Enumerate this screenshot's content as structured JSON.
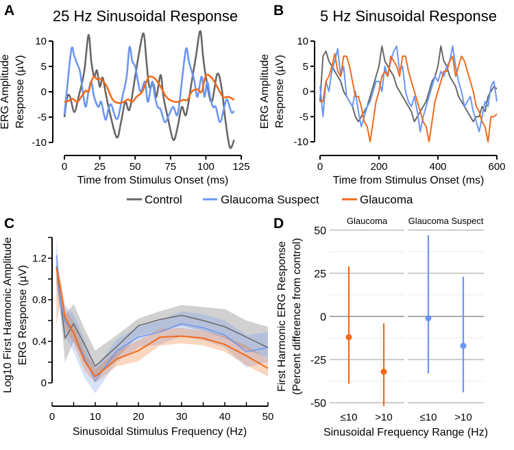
{
  "colors": {
    "control": "#666666",
    "suspect": "#6a96f2",
    "glaucoma": "#f26a1b"
  },
  "legend": [
    {
      "name": "Control",
      "color_key": "control"
    },
    {
      "name": "Glaucoma Suspect",
      "color_key": "suspect"
    },
    {
      "name": "Glaucoma",
      "color_key": "glaucoma"
    }
  ],
  "chart_data": [
    {
      "panel": "A",
      "type": "line",
      "title": "25 Hz Sinusoidal Response",
      "xlabel": "Time from Stimulus Onset (ms)",
      "ylabel": [
        "ERG Amplitude",
        "Response (µV)"
      ],
      "xlim": [
        0,
        125
      ],
      "ylim": [
        -10,
        10
      ],
      "xticks": [
        0,
        25,
        50,
        75,
        100,
        125
      ],
      "yticks": [
        -10,
        -5,
        0,
        5,
        10
      ],
      "smooth": true,
      "series": [
        {
          "name": "Control",
          "color_key": "control",
          "x": [
            0,
            2,
            4,
            7,
            10,
            14,
            17,
            19,
            21,
            23,
            25,
            27,
            29,
            32,
            37,
            40,
            43,
            46,
            50,
            53,
            56,
            58,
            60,
            63,
            65,
            68,
            70,
            73,
            77,
            80,
            83,
            86,
            90,
            93,
            96,
            98,
            100,
            104,
            108,
            111,
            114,
            117,
            120
          ],
          "y": [
            -5,
            -1,
            -1,
            -4,
            -1,
            4,
            11.2,
            6,
            3,
            4.2,
            1,
            2.8,
            0,
            -4,
            -9,
            -6,
            -2,
            -3.5,
            3,
            8,
            11.5,
            6,
            1,
            1.5,
            -1,
            3.3,
            -1,
            -5,
            -9.5,
            -7,
            -3,
            -4.5,
            2,
            7,
            12,
            7,
            3,
            -2,
            3.5,
            1,
            -6,
            -11,
            -9.5
          ]
        },
        {
          "name": "Glaucoma Suspect",
          "color_key": "suspect",
          "x": [
            0,
            2,
            5,
            7,
            9,
            11,
            13,
            15,
            17,
            19,
            21,
            24,
            26,
            29,
            31,
            33,
            36,
            38,
            41,
            44,
            46,
            48,
            50,
            52,
            54,
            57,
            59,
            62,
            64,
            66,
            68,
            71,
            74,
            77,
            80,
            83,
            86,
            88,
            90,
            92,
            94,
            97,
            99,
            101,
            103,
            105,
            107,
            110,
            113,
            115,
            118,
            120
          ],
          "y": [
            -4.5,
            1,
            8.5,
            7,
            5.5,
            4,
            0,
            -3,
            0,
            2,
            -1,
            -3,
            -2,
            -5.5,
            -3.5,
            -2.5,
            -5,
            -5,
            -1,
            3,
            8.8,
            6,
            5,
            2,
            0,
            2,
            -2,
            2,
            -1,
            -3,
            -3.5,
            -6,
            -4.5,
            -3,
            -4.5,
            2,
            8.5,
            6,
            4,
            2,
            -1,
            3,
            -1,
            2,
            -1,
            -3,
            -3,
            -6,
            -3,
            -1.5,
            -4,
            -3.8
          ]
        },
        {
          "name": "Glaucoma",
          "color_key": "glaucoma",
          "x": [
            0,
            3,
            6,
            9,
            12,
            15,
            17,
            19,
            21,
            23,
            26,
            30,
            34,
            38,
            42,
            45,
            48,
            51,
            55,
            58,
            60,
            64,
            68,
            72,
            76,
            80,
            84,
            87,
            90,
            94,
            97,
            100,
            104,
            108,
            112,
            116,
            120
          ],
          "y": [
            -2,
            -1.8,
            -1.4,
            -2,
            -1,
            0.2,
            0,
            2,
            3,
            2.5,
            2.5,
            1,
            -1.5,
            -2.2,
            -2,
            -1.5,
            -2,
            -1,
            0,
            2,
            3,
            2.6,
            1,
            -1,
            -1.8,
            -2,
            -1.6,
            -1.6,
            0,
            0.5,
            0,
            3.2,
            2.8,
            1,
            -1,
            -1,
            -1.6
          ]
        }
      ]
    },
    {
      "panel": "B",
      "type": "line",
      "title": "5 Hz Sinusoidal Response",
      "xlabel": "Time from Stimulus Onset (ms)",
      "ylabel": [
        "ERG Amplitude",
        "Response (µV)"
      ],
      "xlim": [
        0,
        600
      ],
      "ylim": [
        -10,
        10
      ],
      "xticks": [
        0,
        200,
        400,
        600
      ],
      "yticks": [
        -10,
        -5,
        0,
        5,
        10
      ],
      "x_step": 10,
      "smooth": false,
      "series": [
        {
          "name": "Control",
          "color_key": "control",
          "y": [
            -2,
            7,
            8,
            6,
            5,
            4,
            3,
            2,
            0,
            -1,
            -2,
            -3,
            -5,
            -6,
            -5,
            -4,
            -3,
            -1,
            1,
            3,
            5,
            9,
            6,
            5,
            4,
            3,
            1,
            0,
            -1,
            -2,
            -3,
            -4,
            -6,
            -5,
            -4,
            -3,
            -2,
            0,
            2,
            3,
            5,
            9,
            6,
            5,
            3,
            2,
            1,
            -1,
            -2,
            -3,
            -4,
            -5,
            -6,
            -5,
            -5,
            -3,
            -4,
            -1,
            0,
            1,
            0.5
          ]
        },
        {
          "name": "Glaucoma Suspect",
          "color_key": "suspect",
          "y": [
            1,
            -5,
            2,
            0,
            4,
            6,
            8.5,
            3,
            5,
            -1,
            -2,
            -3,
            0,
            -4,
            -7,
            -5,
            -3,
            -2,
            0,
            2,
            2,
            0,
            5,
            3,
            6,
            8,
            9,
            4,
            5,
            0,
            -2,
            -3,
            -1,
            -4,
            -8,
            -5,
            -3,
            -1,
            1,
            3,
            2,
            4,
            3,
            5,
            6,
            9,
            5,
            2,
            0,
            -3,
            -2,
            -1,
            -4,
            -6,
            -8,
            -5,
            -2,
            -3,
            1,
            2,
            -2
          ]
        },
        {
          "name": "Glaucoma",
          "color_key": "glaucoma",
          "y": [
            -2,
            -2,
            2,
            3,
            5,
            7.5,
            4,
            3,
            7,
            7,
            5,
            2,
            -1,
            -1,
            -3,
            -6,
            -7,
            -10,
            -6,
            -2,
            0,
            3,
            4,
            3,
            7,
            6,
            5,
            3,
            7,
            7,
            4,
            2,
            0,
            -2,
            -4,
            -6,
            -7,
            -10,
            -6,
            -2,
            0,
            2,
            4,
            4,
            6,
            7,
            3,
            5,
            7,
            6,
            4,
            2,
            0,
            -3,
            -4,
            -6,
            -7,
            -10,
            -5,
            -5,
            -4.5
          ]
        }
      ]
    },
    {
      "panel": "C",
      "type": "line",
      "xlabel": "Sinusoidal Stimulus Frequency (Hz)",
      "ylabel": [
        "Log10 First Harmonic Amplitude",
        "ERG Response (µV)"
      ],
      "xlim": [
        0,
        50
      ],
      "ylim": [
        0,
        1.4
      ],
      "xticks": [
        0,
        10,
        20,
        30,
        40,
        50
      ],
      "yticks": [
        0,
        0.4,
        0.8,
        1.2
      ],
      "x": [
        1,
        2,
        3,
        5,
        7.5,
        10,
        15,
        20,
        25,
        30,
        35,
        40,
        45,
        50
      ],
      "series": [
        {
          "name": "Control",
          "color_key": "control",
          "y": [
            1.12,
            0.78,
            0.43,
            0.57,
            0.37,
            0.16,
            0.35,
            0.55,
            0.61,
            0.65,
            0.6,
            0.54,
            0.44,
            0.34
          ],
          "ci_low": [
            0.95,
            0.65,
            0.2,
            0.4,
            0.22,
            0.06,
            0.24,
            0.45,
            0.5,
            0.55,
            0.5,
            0.43,
            0.32,
            0.24
          ],
          "ci_high": [
            1.2,
            0.95,
            0.65,
            0.76,
            0.52,
            0.31,
            0.46,
            0.62,
            0.69,
            0.75,
            0.73,
            0.71,
            0.6,
            0.54
          ]
        },
        {
          "name": "Glaucoma Suspect",
          "color_key": "suspect",
          "y": [
            1.23,
            0.76,
            0.59,
            0.48,
            0.24,
            0.02,
            0.31,
            0.44,
            0.49,
            0.57,
            0.53,
            0.46,
            0.3,
            0.34
          ],
          "ci_low": [
            1.05,
            0.65,
            0.45,
            0.3,
            0.05,
            -0.1,
            0.2,
            0.34,
            0.37,
            0.45,
            0.41,
            0.34,
            0.15,
            0.2
          ],
          "ci_high": [
            1.4,
            0.88,
            0.75,
            0.66,
            0.42,
            0.14,
            0.42,
            0.54,
            0.6,
            0.69,
            0.66,
            0.6,
            0.46,
            0.49
          ]
        },
        {
          "name": "Glaucoma",
          "color_key": "glaucoma",
          "y": [
            1.1,
            0.9,
            0.63,
            0.48,
            0.21,
            0.06,
            0.23,
            0.31,
            0.44,
            0.45,
            0.43,
            0.37,
            0.26,
            0.14
          ],
          "ci_low": [
            0.55,
            0.8,
            0.52,
            0.38,
            0.12,
            0.0,
            0.16,
            0.21,
            0.36,
            0.38,
            0.36,
            0.3,
            0.17,
            0.06
          ],
          "ci_high": [
            1.15,
            1.0,
            0.73,
            0.58,
            0.31,
            0.13,
            0.31,
            0.41,
            0.52,
            0.53,
            0.5,
            0.45,
            0.36,
            0.23
          ]
        }
      ]
    },
    {
      "panel": "D",
      "type": "errorbar",
      "xlabel": "Sinusoidal Frequency Range (Hz)",
      "ylabel": [
        "First Harmonic ERG Response",
        "(Percent difference from control)"
      ],
      "ylim": [
        -50,
        50
      ],
      "yticks": [
        -50,
        -25,
        0,
        25,
        50
      ],
      "grid": true,
      "facets": [
        {
          "label": "Glaucoma",
          "color_key": "glaucoma",
          "points": [
            {
              "category": "≤10",
              "estimate": -12,
              "low": -39,
              "high": 29
            },
            {
              "category": ">10",
              "estimate": -32,
              "low": -52,
              "high": -4
            }
          ]
        },
        {
          "label": "Glaucoma Suspect",
          "color_key": "suspect",
          "points": [
            {
              "category": "≤10",
              "estimate": -1,
              "low": -33,
              "high": 47
            },
            {
              "category": ">10",
              "estimate": -17,
              "low": -44,
              "high": 23
            }
          ]
        }
      ]
    }
  ]
}
